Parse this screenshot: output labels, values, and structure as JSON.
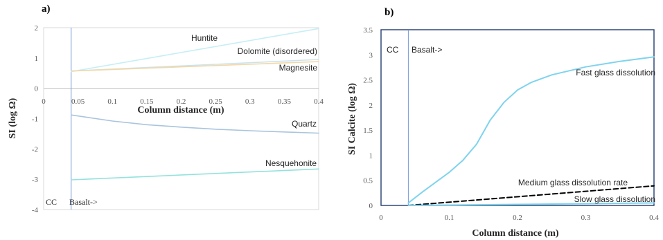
{
  "chart_data": [
    {
      "panel_label": "a)",
      "type": "line",
      "xlabel": "Column distance (m)",
      "ylabel": "SI (log Ω)",
      "xlim": [
        0,
        0.4
      ],
      "ylim": [
        -4,
        2
      ],
      "x_ticks": [
        "0",
        "0.05",
        "0.1",
        "0.15",
        "0.2",
        "0.25",
        "0.3",
        "0.35",
        "0.4"
      ],
      "y_ticks": [
        "2",
        "1",
        "0",
        "-1",
        "-2",
        "-3",
        "-4"
      ],
      "annotations": [
        "CC",
        "Basalt->"
      ],
      "boundary_x": 0.04,
      "series": [
        {
          "name": "Huntite",
          "color": "#c6eef5",
          "x": [
            0.04,
            0.4
          ],
          "y": [
            0.55,
            1.97
          ]
        },
        {
          "name": "Dolomite (disordered)",
          "color": "#cbe3ee",
          "x": [
            0.04,
            0.4
          ],
          "y": [
            0.57,
            0.95
          ]
        },
        {
          "name": "Magnesite",
          "color": "#f3d8a6",
          "x": [
            0.04,
            0.4
          ],
          "y": [
            0.57,
            0.88
          ]
        },
        {
          "name": "Quartz",
          "color": "#a9c4dd",
          "x": [
            0.04,
            0.1,
            0.15,
            0.2,
            0.25,
            0.3,
            0.35,
            0.4
          ],
          "y": [
            -0.88,
            -1.08,
            -1.2,
            -1.28,
            -1.35,
            -1.4,
            -1.44,
            -1.48
          ]
        },
        {
          "name": "Nesquehonite",
          "color": "#94e2dd",
          "x": [
            0.04,
            0.4
          ],
          "y": [
            -3.02,
            -2.66
          ]
        }
      ]
    },
    {
      "panel_label": "b)",
      "type": "line",
      "xlabel": "Column distance (m)",
      "ylabel": "SI Calcite (log Ω)",
      "xlim": [
        0,
        0.4
      ],
      "ylim": [
        0,
        3.5
      ],
      "x_ticks": [
        "0",
        "0.1",
        "0.2",
        "0.3",
        "0.4"
      ],
      "y_ticks": [
        "3.5",
        "3",
        "2.5",
        "2",
        "1.5",
        "1",
        "0.5",
        "0"
      ],
      "annotations": [
        "CC",
        "Basalt->"
      ],
      "boundary_x": 0.04,
      "series": [
        {
          "name": "Fast glass dissolution",
          "color": "#7fd3ee",
          "x": [
            0.04,
            0.06,
            0.08,
            0.1,
            0.12,
            0.14,
            0.16,
            0.18,
            0.2,
            0.22,
            0.25,
            0.3,
            0.35,
            0.4
          ],
          "y": [
            0.05,
            0.26,
            0.46,
            0.66,
            0.9,
            1.22,
            1.7,
            2.05,
            2.3,
            2.45,
            2.6,
            2.76,
            2.87,
            2.96
          ]
        },
        {
          "name": "Medium glass dissolution rate",
          "color": "#000000",
          "x": [
            0.04,
            0.4
          ],
          "y": [
            0.0,
            0.39
          ]
        },
        {
          "name": "Slow glass dissolution",
          "color": "#7fd3ee",
          "x": [
            0.04,
            0.2,
            0.3,
            0.4
          ],
          "y": [
            0.0,
            0.02,
            0.035,
            0.05
          ]
        }
      ]
    }
  ]
}
